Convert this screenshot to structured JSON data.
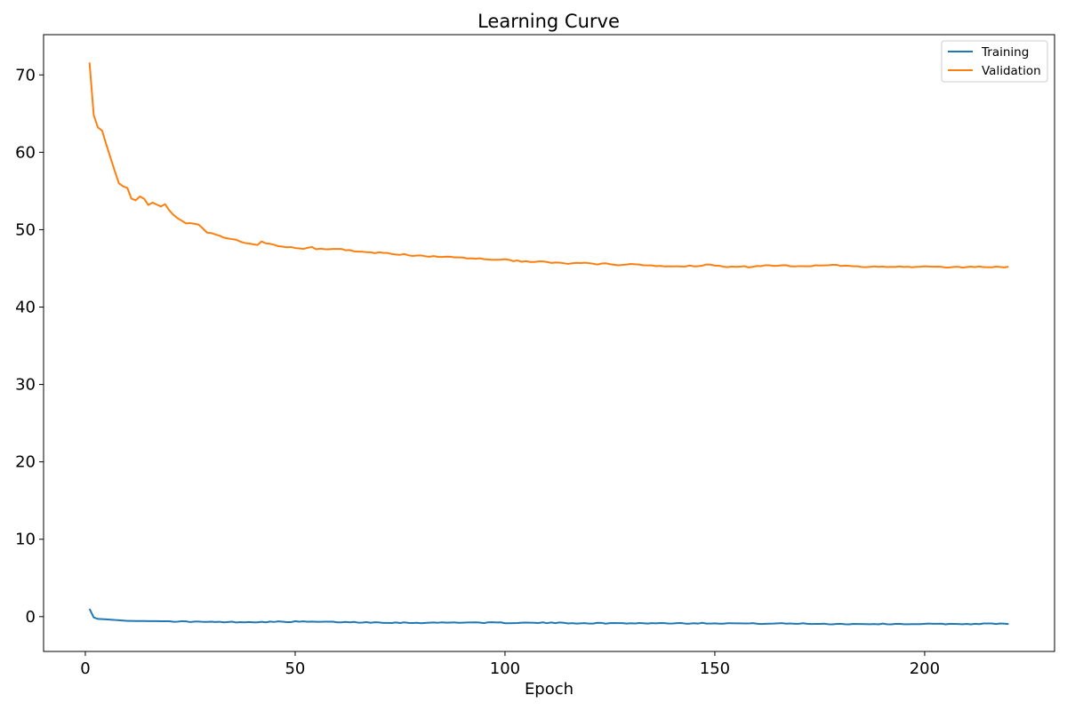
{
  "chart_data": {
    "type": "line",
    "title": "Learning Curve",
    "xlabel": "Epoch",
    "ylabel": "",
    "xlim": [
      -9.95,
      230.95
    ],
    "ylim": [
      -4.5,
      75.2
    ],
    "xticks": [
      0,
      50,
      100,
      150,
      200
    ],
    "yticks": [
      0,
      10,
      20,
      30,
      40,
      50,
      60,
      70
    ],
    "grid": false,
    "legend_position": "top-right",
    "series": [
      {
        "name": "Training",
        "color": "#1f77b4",
        "keypoints": [
          [
            1,
            1.0
          ],
          [
            2,
            -0.1
          ],
          [
            3,
            -0.3
          ],
          [
            5,
            -0.35
          ],
          [
            10,
            -0.55
          ],
          [
            20,
            -0.6
          ],
          [
            30,
            -0.7
          ],
          [
            40,
            -0.7
          ],
          [
            50,
            -0.65
          ],
          [
            60,
            -0.7
          ],
          [
            70,
            -0.75
          ],
          [
            80,
            -0.8
          ],
          [
            90,
            -0.75
          ],
          [
            100,
            -0.8
          ],
          [
            110,
            -0.8
          ],
          [
            120,
            -0.85
          ],
          [
            130,
            -0.85
          ],
          [
            140,
            -0.85
          ],
          [
            150,
            -0.85
          ],
          [
            160,
            -0.9
          ],
          [
            170,
            -0.9
          ],
          [
            180,
            -0.95
          ],
          [
            190,
            -0.95
          ],
          [
            200,
            -0.95
          ],
          [
            210,
            -0.95
          ],
          [
            220,
            -0.9
          ]
        ]
      },
      {
        "name": "Validation",
        "color": "#ff7f0e",
        "keypoints": [
          [
            1,
            71.6
          ],
          [
            2,
            64.8
          ],
          [
            3,
            63.2
          ],
          [
            4,
            62.8
          ],
          [
            5,
            61.0
          ],
          [
            6,
            59.3
          ],
          [
            7,
            57.6
          ],
          [
            8,
            56.0
          ],
          [
            9,
            55.6
          ],
          [
            10,
            55.4
          ],
          [
            11,
            54.0
          ],
          [
            12,
            53.8
          ],
          [
            13,
            54.3
          ],
          [
            14,
            54.0
          ],
          [
            15,
            53.2
          ],
          [
            16,
            53.5
          ],
          [
            18,
            53.0
          ],
          [
            19,
            53.3
          ],
          [
            20,
            52.5
          ],
          [
            22,
            51.5
          ],
          [
            24,
            50.9
          ],
          [
            27,
            50.7
          ],
          [
            29,
            49.6
          ],
          [
            31,
            49.4
          ],
          [
            33,
            48.9
          ],
          [
            36,
            48.7
          ],
          [
            38,
            48.3
          ],
          [
            41,
            48.1
          ],
          [
            42,
            48.4
          ],
          [
            46,
            47.9
          ],
          [
            50,
            47.6
          ],
          [
            52,
            47.5
          ],
          [
            54,
            47.8
          ],
          [
            55,
            47.5
          ],
          [
            60,
            47.5
          ],
          [
            62,
            47.4
          ],
          [
            65,
            47.2
          ],
          [
            70,
            47.0
          ],
          [
            75,
            46.8
          ],
          [
            80,
            46.6
          ],
          [
            85,
            46.5
          ],
          [
            90,
            46.4
          ],
          [
            95,
            46.2
          ],
          [
            100,
            46.1
          ],
          [
            105,
            45.9
          ],
          [
            110,
            45.8
          ],
          [
            115,
            45.6
          ],
          [
            118,
            45.7
          ],
          [
            122,
            45.5
          ],
          [
            124,
            45.65
          ],
          [
            127,
            45.4
          ],
          [
            130,
            45.5
          ],
          [
            135,
            45.3
          ],
          [
            140,
            45.3
          ],
          [
            145,
            45.3
          ],
          [
            148,
            45.5
          ],
          [
            150,
            45.4
          ],
          [
            153,
            45.2
          ],
          [
            158,
            45.2
          ],
          [
            160,
            45.3
          ],
          [
            165,
            45.4
          ],
          [
            170,
            45.3
          ],
          [
            175,
            45.4
          ],
          [
            178,
            45.5
          ],
          [
            180,
            45.3
          ],
          [
            185,
            45.2
          ],
          [
            190,
            45.2
          ],
          [
            195,
            45.2
          ],
          [
            200,
            45.2
          ],
          [
            205,
            45.15
          ],
          [
            210,
            45.2
          ],
          [
            215,
            45.2
          ],
          [
            220,
            45.2
          ]
        ]
      }
    ]
  }
}
